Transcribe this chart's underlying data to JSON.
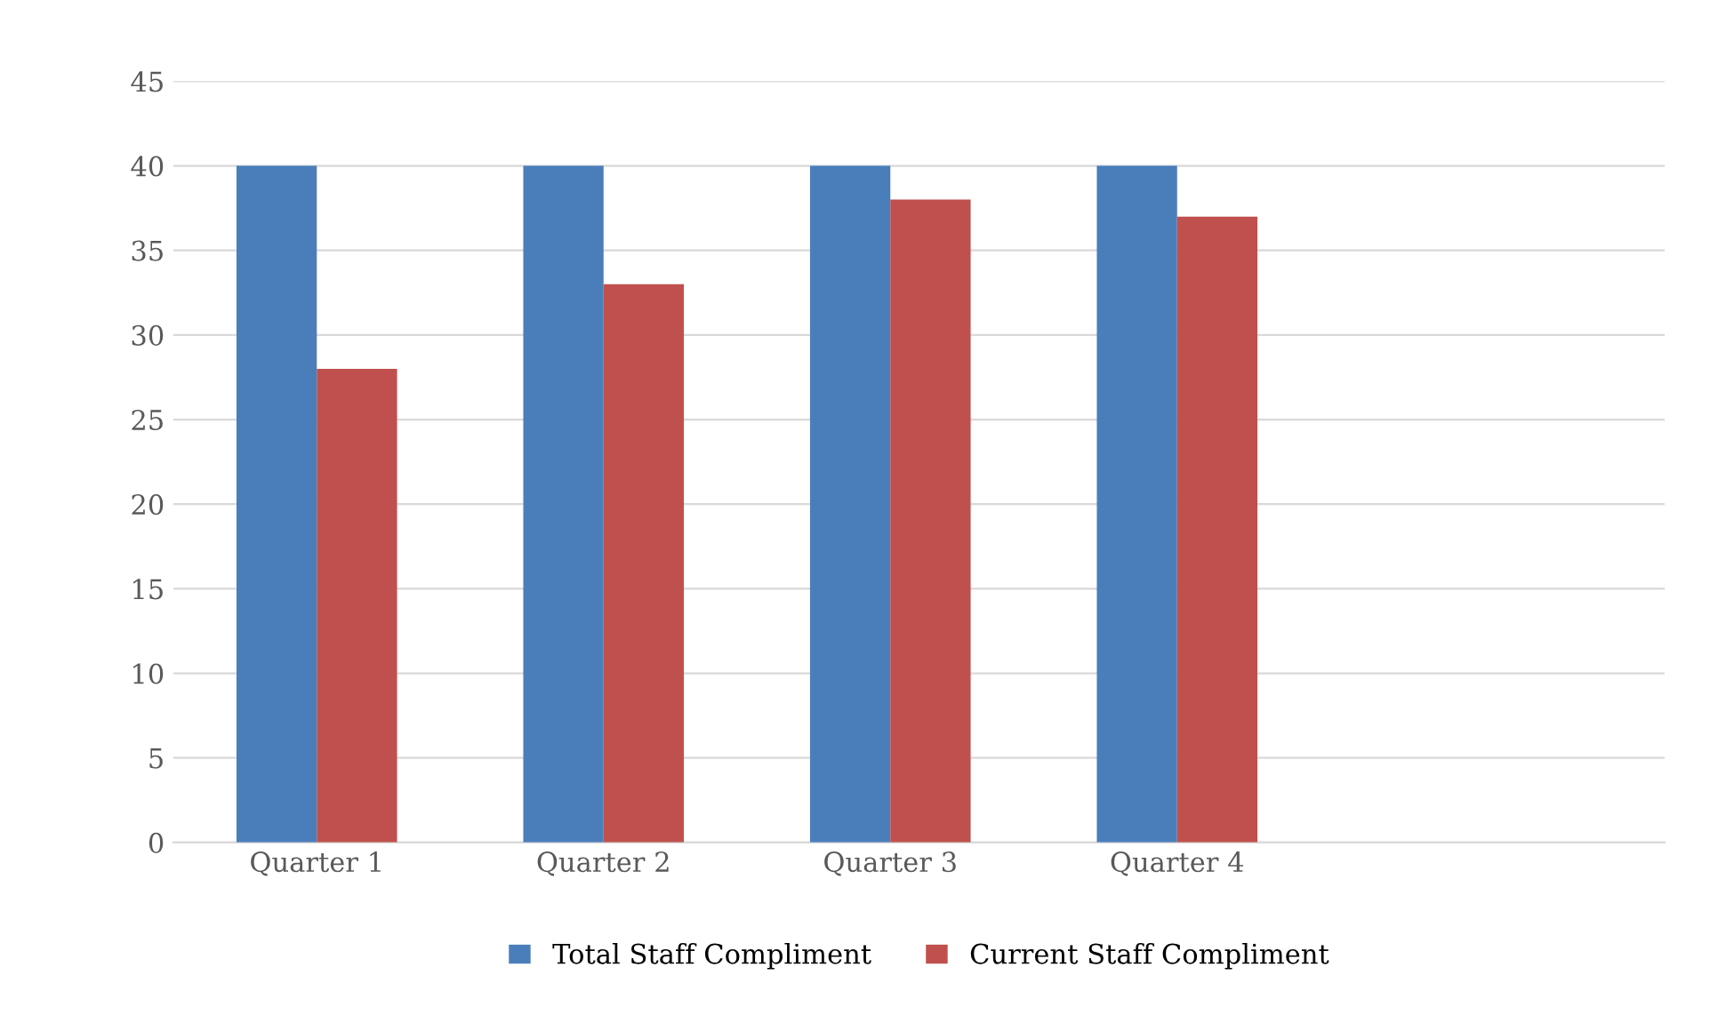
{
  "chart_data": {
    "type": "bar",
    "categories": [
      "Quarter 1",
      "Quarter 2",
      "Quarter 3",
      "Quarter 4"
    ],
    "series": [
      {
        "name": "Total Staff Compliment",
        "color": "#4a7ebb",
        "values": [
          40,
          40,
          40,
          40
        ]
      },
      {
        "name": "Current Staff Compliment",
        "color": "#c0504d",
        "values": [
          28,
          33,
          38,
          37
        ]
      }
    ],
    "ylim": [
      0,
      45
    ],
    "yticks": [
      0,
      5,
      10,
      15,
      20,
      25,
      30,
      35,
      40,
      45
    ],
    "grid": "y",
    "legend": "bottom"
  }
}
